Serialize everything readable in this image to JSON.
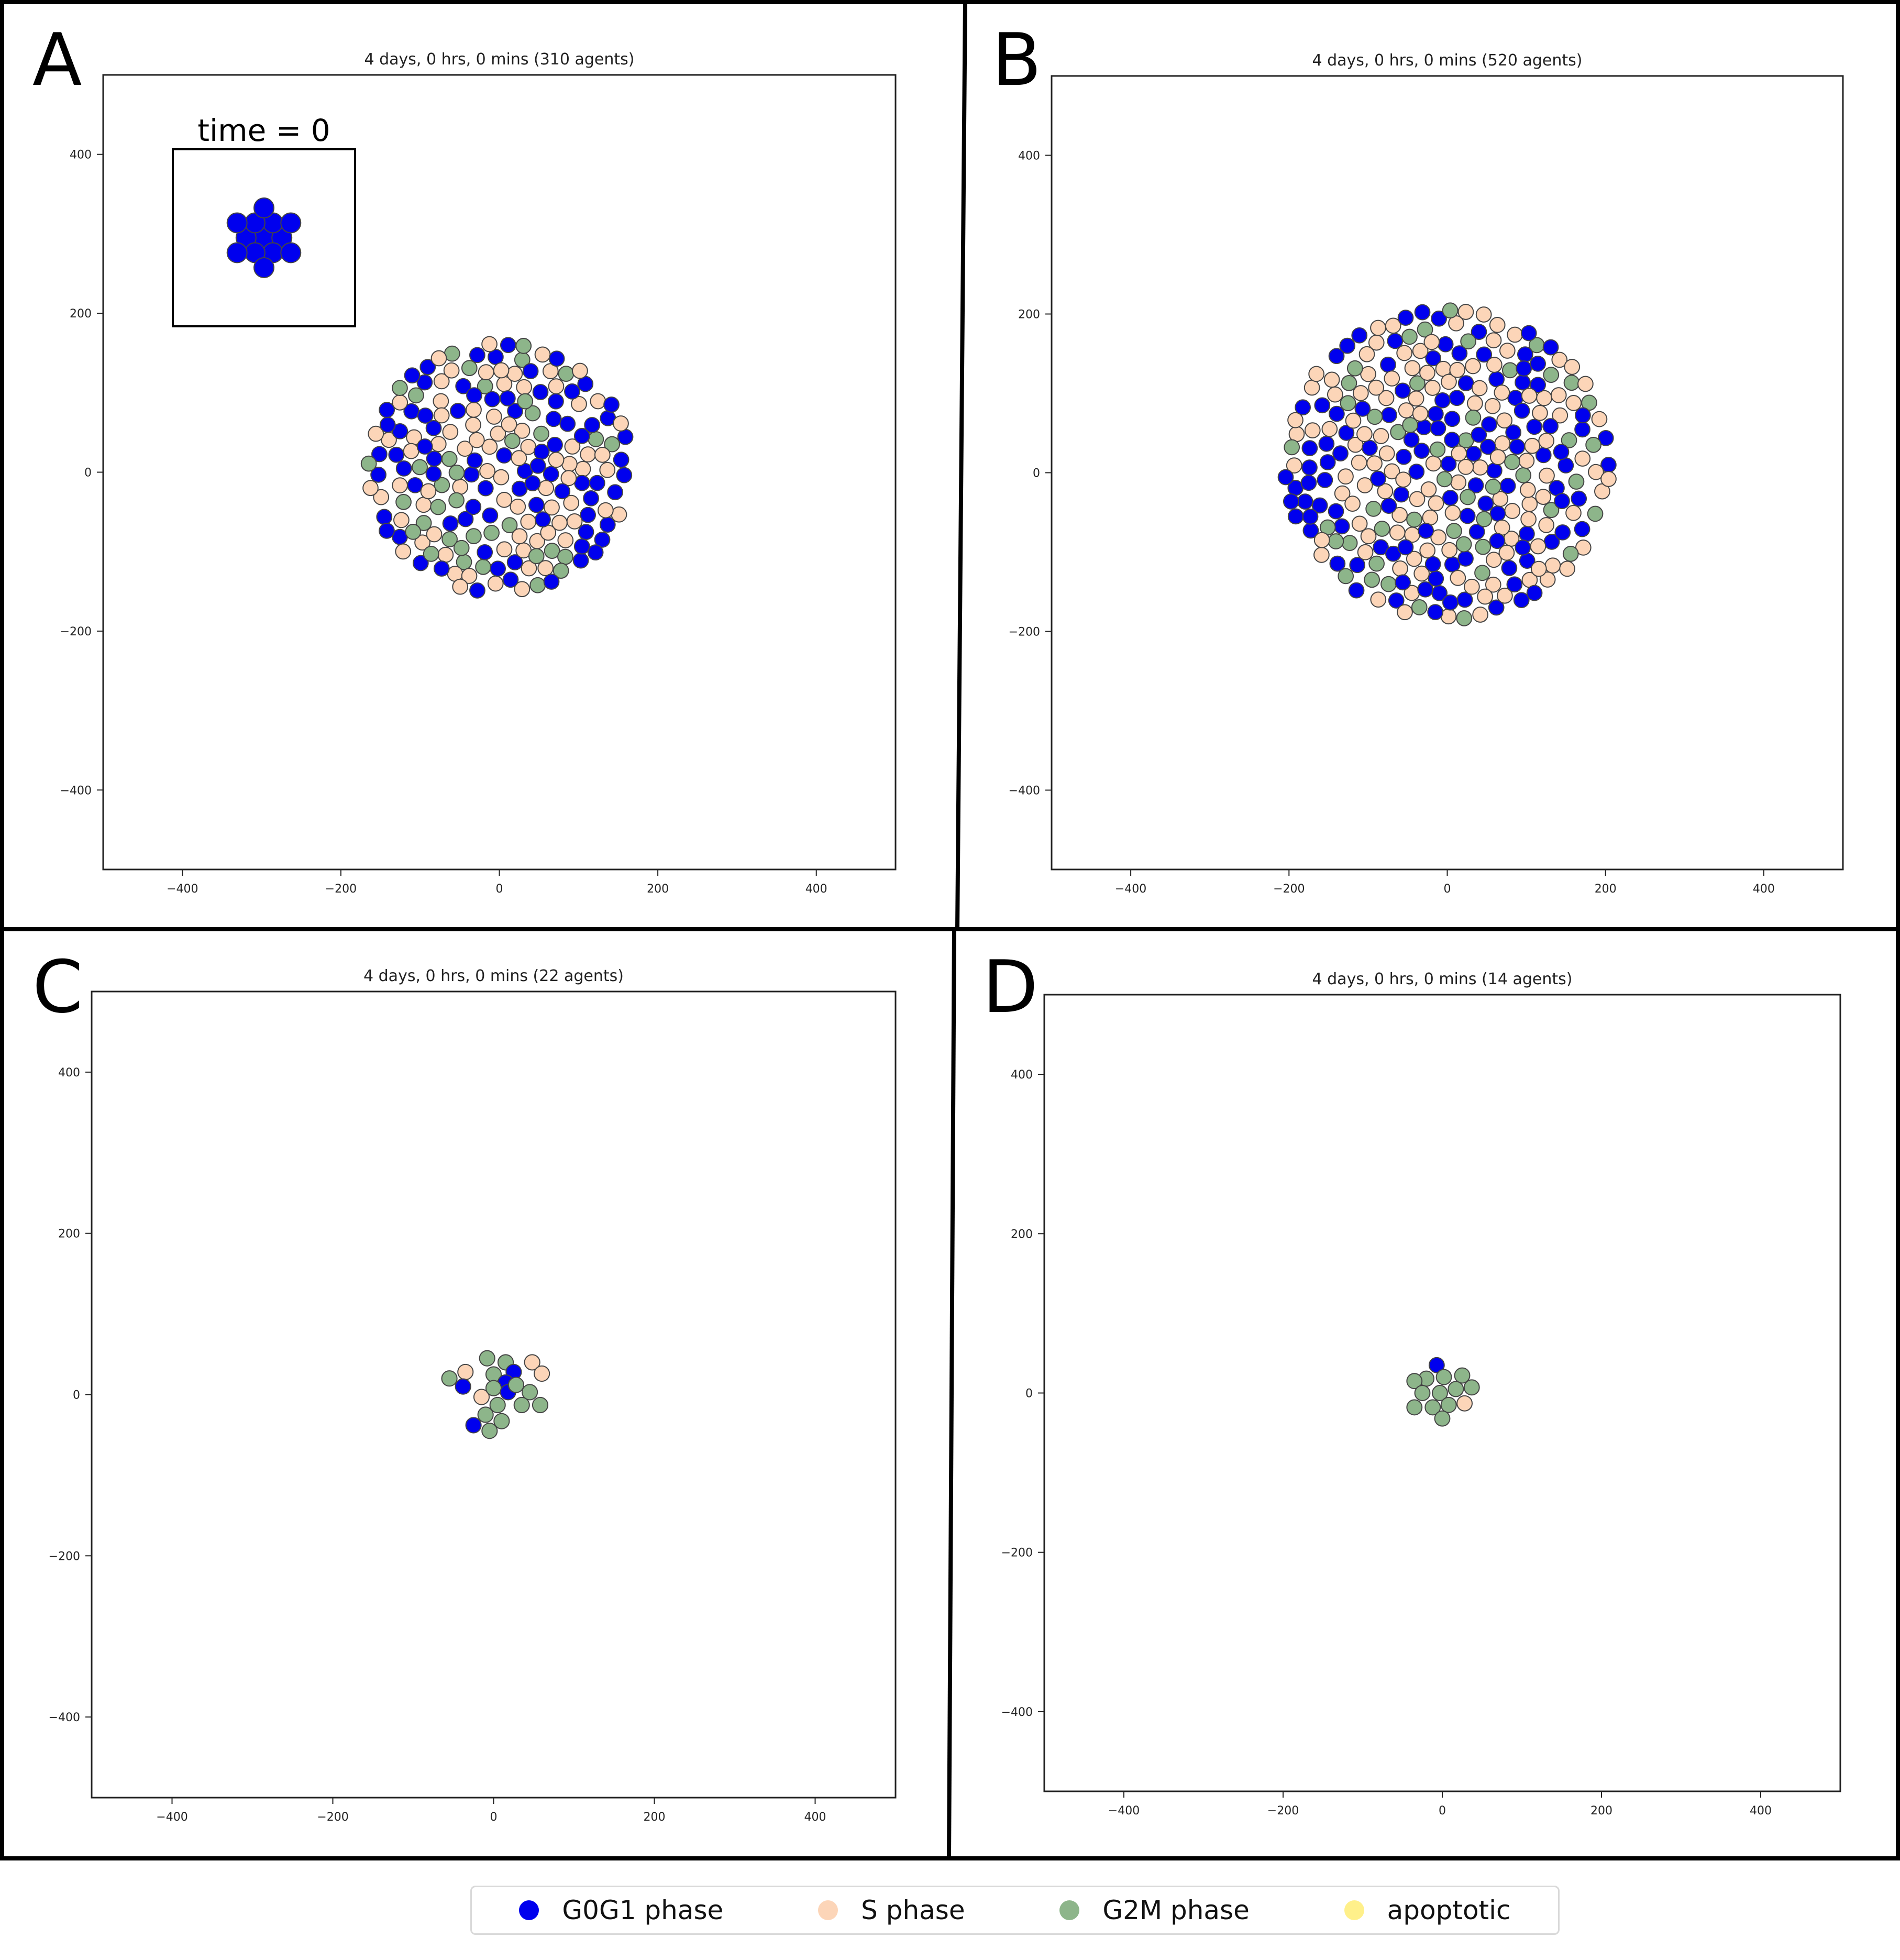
{
  "colors": {
    "g0g1": "#0000ee",
    "s": "#fcd5b8",
    "g2m": "#8db58a",
    "apoptotic": "#fff08a",
    "cell_edge": "#444444",
    "axis": "#222222"
  },
  "legend": [
    {
      "label": "G0G1 phase",
      "color": "#0000ee"
    },
    {
      "label": "S phase",
      "color": "#fcd5b8"
    },
    {
      "label": "G2M phase",
      "color": "#8db58a"
    },
    {
      "label": "apoptotic",
      "color": "#fff08a"
    }
  ],
  "chart_data": [
    {
      "panel": "A",
      "type": "scatter",
      "title": "4 days, 0 hrs, 0 mins (310 agents)",
      "xlim": [
        -500,
        500
      ],
      "ylim": [
        -500,
        500
      ],
      "xticks": [
        -400,
        -200,
        0,
        200,
        400
      ],
      "yticks": [
        -400,
        -200,
        0,
        200,
        400
      ],
      "xtick_labels": [
        "−400",
        "−200",
        "0",
        "200",
        "400"
      ],
      "ytick_labels": [
        "−400",
        "−200",
        "0",
        "200",
        "400"
      ],
      "agent_count": 310,
      "cluster": {
        "center": [
          0,
          5
        ],
        "radius": 165,
        "fractions": {
          "g0g1": 0.35,
          "s": 0.45,
          "g2m": 0.2
        }
      },
      "inset": {
        "label": "time = 0",
        "points": [
          {
            "x": 0,
            "y": 0,
            "phase": "g0g1"
          },
          {
            "x": 12,
            "y": 0,
            "phase": "g0g1"
          },
          {
            "x": -12,
            "y": 0,
            "phase": "g0g1"
          },
          {
            "x": 6,
            "y": 10,
            "phase": "g0g1"
          },
          {
            "x": -6,
            "y": 10,
            "phase": "g0g1"
          },
          {
            "x": 6,
            "y": -10,
            "phase": "g0g1"
          },
          {
            "x": -6,
            "y": -10,
            "phase": "g0g1"
          },
          {
            "x": 0,
            "y": 20,
            "phase": "g0g1"
          },
          {
            "x": 0,
            "y": -20,
            "phase": "g0g1"
          },
          {
            "x": 18,
            "y": 10,
            "phase": "g0g1"
          },
          {
            "x": -18,
            "y": 10,
            "phase": "g0g1"
          },
          {
            "x": 18,
            "y": -10,
            "phase": "g0g1"
          },
          {
            "x": -18,
            "y": -10,
            "phase": "g0g1"
          }
        ]
      }
    },
    {
      "panel": "B",
      "type": "scatter",
      "title": "4 days, 0 hrs, 0 mins (520 agents)",
      "xlim": [
        -500,
        500
      ],
      "ylim": [
        -500,
        500
      ],
      "xticks": [
        -400,
        -200,
        0,
        200,
        400
      ],
      "yticks": [
        -400,
        -200,
        0,
        200,
        400
      ],
      "xtick_labels": [
        "−400",
        "−200",
        "0",
        "200",
        "400"
      ],
      "ytick_labels": [
        "−400",
        "−200",
        "0",
        "200",
        "400"
      ],
      "agent_count": 520,
      "cluster": {
        "center": [
          0,
          10
        ],
        "radius": 205,
        "fractions": {
          "g0g1": 0.4,
          "s": 0.45,
          "g2m": 0.15
        }
      }
    },
    {
      "panel": "C",
      "type": "scatter",
      "title": "4 days, 0 hrs, 0 mins (22 agents)",
      "xlim": [
        -500,
        500
      ],
      "ylim": [
        -500,
        500
      ],
      "xticks": [
        -400,
        -200,
        0,
        200,
        400
      ],
      "yticks": [
        -400,
        -200,
        0,
        200,
        400
      ],
      "xtick_labels": [
        "−400",
        "−200",
        "0",
        "200",
        "400"
      ],
      "ytick_labels": [
        "−400",
        "−200",
        "0",
        "200",
        "400"
      ],
      "agent_count": 22,
      "points": [
        {
          "x": -55,
          "y": 20,
          "phase": "g2m"
        },
        {
          "x": -35,
          "y": 28,
          "phase": "s"
        },
        {
          "x": -38,
          "y": 10,
          "phase": "g0g1"
        },
        {
          "x": -8,
          "y": 45,
          "phase": "g2m"
        },
        {
          "x": 15,
          "y": 40,
          "phase": "g2m"
        },
        {
          "x": 48,
          "y": 40,
          "phase": "s"
        },
        {
          "x": 60,
          "y": 26,
          "phase": "s"
        },
        {
          "x": 0,
          "y": 25,
          "phase": "g2m"
        },
        {
          "x": 25,
          "y": 28,
          "phase": "g0g1"
        },
        {
          "x": 15,
          "y": 15,
          "phase": "g0g1"
        },
        {
          "x": -15,
          "y": -3,
          "phase": "s"
        },
        {
          "x": 0,
          "y": 8,
          "phase": "g2m"
        },
        {
          "x": 18,
          "y": 3,
          "phase": "g0g1"
        },
        {
          "x": 45,
          "y": 3,
          "phase": "g2m"
        },
        {
          "x": 58,
          "y": -13,
          "phase": "g2m"
        },
        {
          "x": 35,
          "y": -13,
          "phase": "g2m"
        },
        {
          "x": 5,
          "y": -13,
          "phase": "g2m"
        },
        {
          "x": -10,
          "y": -25,
          "phase": "g2m"
        },
        {
          "x": 10,
          "y": -33,
          "phase": "g2m"
        },
        {
          "x": -25,
          "y": -38,
          "phase": "g0g1"
        },
        {
          "x": -5,
          "y": -45,
          "phase": "g2m"
        },
        {
          "x": 28,
          "y": 12,
          "phase": "g2m"
        }
      ]
    },
    {
      "panel": "D",
      "type": "scatter",
      "title": "4 days, 0 hrs, 0 mins (14 agents)",
      "xlim": [
        -500,
        500
      ],
      "ylim": [
        -500,
        500
      ],
      "xticks": [
        -400,
        -200,
        0,
        200,
        400
      ],
      "yticks": [
        -400,
        -200,
        0,
        200,
        400
      ],
      "xtick_labels": [
        "−400",
        "−200",
        "0",
        "200",
        "400"
      ],
      "ytick_labels": [
        "−400",
        "−200",
        "0",
        "200",
        "400"
      ],
      "agent_count": 14,
      "points": [
        {
          "x": -7,
          "y": 35,
          "phase": "g0g1"
        },
        {
          "x": -20,
          "y": 18,
          "phase": "g2m"
        },
        {
          "x": 2,
          "y": 20,
          "phase": "g2m"
        },
        {
          "x": 25,
          "y": 22,
          "phase": "g2m"
        },
        {
          "x": -35,
          "y": 15,
          "phase": "g2m"
        },
        {
          "x": -25,
          "y": 0,
          "phase": "g2m"
        },
        {
          "x": -3,
          "y": 0,
          "phase": "g2m"
        },
        {
          "x": 17,
          "y": 5,
          "phase": "g2m"
        },
        {
          "x": 37,
          "y": 7,
          "phase": "g2m"
        },
        {
          "x": -35,
          "y": -18,
          "phase": "g2m"
        },
        {
          "x": -12,
          "y": -18,
          "phase": "g2m"
        },
        {
          "x": 8,
          "y": -15,
          "phase": "g2m"
        },
        {
          "x": 28,
          "y": -13,
          "phase": "s"
        },
        {
          "x": 0,
          "y": -32,
          "phase": "g2m"
        }
      ]
    }
  ]
}
